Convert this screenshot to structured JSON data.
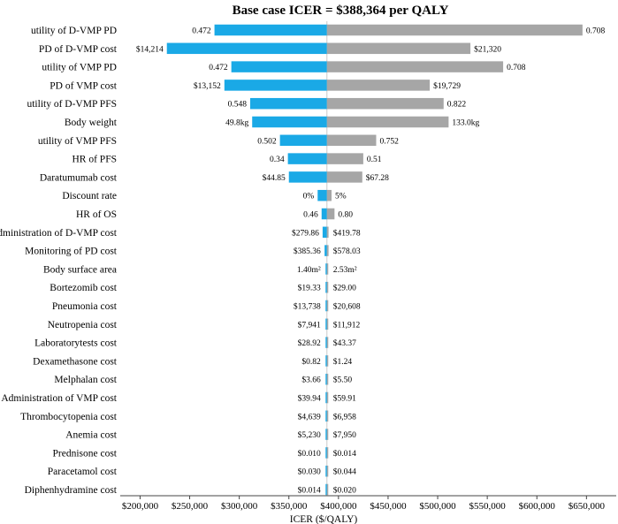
{
  "chart_data": {
    "type": "tornado",
    "title": "Base case ICER = $388,364 per QALY",
    "xlabel": "ICER ($/QALY)",
    "base_case": 388364,
    "xlim": [
      180000,
      680000
    ],
    "xticks": [
      200000,
      250000,
      300000,
      350000,
      400000,
      450000,
      500000,
      550000,
      600000,
      650000
    ],
    "xtick_labels": [
      "$200,000",
      "$250,000",
      "$300,000",
      "$350,000",
      "$400,000",
      "$450,000",
      "$500,000",
      "$550,000",
      "$600,000",
      "$650,000"
    ],
    "series_colors": {
      "low": "#1aa9e6",
      "high": "#a6a6a6"
    },
    "parameters": [
      {
        "name": "utility of D-VMP PD",
        "blue_end": 275000,
        "blue_label": "0.472",
        "gray_end": 646000,
        "gray_label": "0.708"
      },
      {
        "name": "PD of D-VMP cost",
        "blue_end": 227000,
        "blue_label": "$14,214",
        "gray_end": 533000,
        "gray_label": "$21,320"
      },
      {
        "name": "utility of VMP PD",
        "blue_end": 292000,
        "blue_label": "0.472",
        "gray_end": 566000,
        "gray_label": "0.708"
      },
      {
        "name": "PD of VMP cost",
        "blue_end": 285000,
        "blue_label": "$13,152",
        "gray_end": 492000,
        "gray_label": "$19,729"
      },
      {
        "name": "utility of D-VMP PFS",
        "blue_end": 311000,
        "blue_label": "0.548",
        "gray_end": 506000,
        "gray_label": "0.822"
      },
      {
        "name": "Body weight",
        "blue_end": 313000,
        "blue_label": "49.8kg",
        "gray_end": 511000,
        "gray_label": "133.0kg"
      },
      {
        "name": "utility of VMP PFS",
        "blue_end": 341000,
        "blue_label": "0.502",
        "gray_end": 438000,
        "gray_label": "0.752"
      },
      {
        "name": "HR of PFS",
        "blue_end": 349000,
        "blue_label": "0.34",
        "gray_end": 425000,
        "gray_label": "0.51"
      },
      {
        "name": "Daratumumab cost",
        "blue_end": 350000,
        "blue_label": "$44.85",
        "gray_end": 424000,
        "gray_label": "$67.28"
      },
      {
        "name": "Discount rate",
        "blue_end": 379000,
        "blue_label": "0%",
        "gray_end": 393000,
        "gray_label": "5%"
      },
      {
        "name": "HR of OS",
        "blue_end": 383000,
        "blue_label": "0.46",
        "gray_end": 396000,
        "gray_label": "0.80"
      },
      {
        "name": "Administration of D-VMP cost",
        "blue_end": 384000,
        "blue_label": "$279.86",
        "gray_end": 390000,
        "gray_label": "$419.78"
      },
      {
        "name": "Monitoring of PD cost",
        "blue_end": 386000,
        "blue_label": "$385.36",
        "gray_end": 390000,
        "gray_label": "$578.03"
      },
      {
        "name": "Body surface area",
        "blue_end": 387000,
        "blue_label": "1.40m²",
        "gray_end": 389000,
        "gray_label": "2.53m²"
      },
      {
        "name": "Bortezomib cost",
        "blue_end": 387000,
        "blue_label": "$19.33",
        "gray_end": 389000,
        "gray_label": "$29.00"
      },
      {
        "name": "Pneumonia cost",
        "blue_end": 387000,
        "blue_label": "$13,738",
        "gray_end": 389000,
        "gray_label": "$20,608"
      },
      {
        "name": "Neutropenia cost",
        "blue_end": 387000,
        "blue_label": "$7,941",
        "gray_end": 389000,
        "gray_label": "$11,912"
      },
      {
        "name": "Laboratorytests cost",
        "blue_end": 387300,
        "blue_label": "$28.92",
        "gray_end": 389000,
        "gray_label": "$43.37"
      },
      {
        "name": "Dexamethasone cost",
        "blue_end": 387300,
        "blue_label": "$0.82",
        "gray_end": 389000,
        "gray_label": "$1.24"
      },
      {
        "name": "Melphalan cost",
        "blue_end": 387300,
        "blue_label": "$3.66",
        "gray_end": 389000,
        "gray_label": "$5.50"
      },
      {
        "name": "Administration of VMP cost",
        "blue_end": 387300,
        "blue_label": "$39.94",
        "gray_end": 389000,
        "gray_label": "$59.91"
      },
      {
        "name": "Thrombocytopenia cost",
        "blue_end": 387300,
        "blue_label": "$4,639",
        "gray_end": 389000,
        "gray_label": "$6,958"
      },
      {
        "name": "Anemia cost",
        "blue_end": 387300,
        "blue_label": "$5,230",
        "gray_end": 389000,
        "gray_label": "$7,950"
      },
      {
        "name": "Prednisone cost",
        "blue_end": 387300,
        "blue_label": "$0.010",
        "gray_end": 389000,
        "gray_label": "$0.014"
      },
      {
        "name": "Paracetamol cost",
        "blue_end": 387300,
        "blue_label": "$0.030",
        "gray_end": 389000,
        "gray_label": "$0.044"
      },
      {
        "name": "Diphenhydramine cost",
        "blue_end": 387300,
        "blue_label": "$0.014",
        "gray_end": 389000,
        "gray_label": "$0.020"
      }
    ]
  }
}
